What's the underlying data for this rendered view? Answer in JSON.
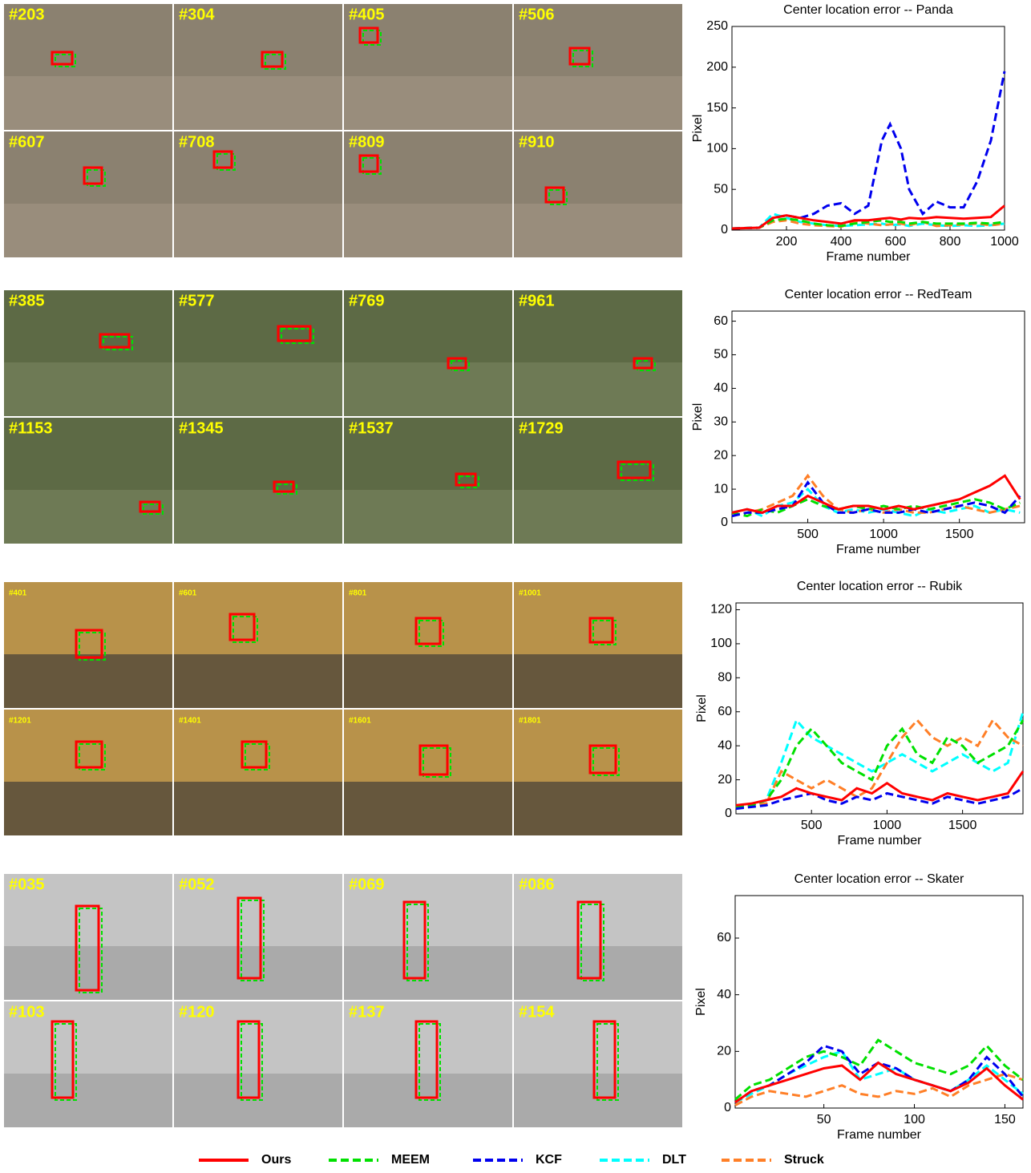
{
  "image_grid": [
    {
      "frames": [
        "#203",
        "#304",
        "#405",
        "#506",
        "#607",
        "#708",
        "#809",
        "#910"
      ]
    },
    {
      "frames": [
        "#385",
        "#577",
        "#769",
        "#961",
        "#1153",
        "#1345",
        "#1537",
        "#1729"
      ]
    },
    {
      "frames": [
        "#401",
        "#601",
        "#801",
        "#1001",
        "#1201",
        "#1401",
        "#1601",
        "#1801"
      ]
    },
    {
      "frames": [
        "#035",
        "#052",
        "#069",
        "#086",
        "#103",
        "#120",
        "#137",
        "#154"
      ]
    }
  ],
  "legend": {
    "entries": [
      {
        "name": "Ours",
        "color": "#ff0000",
        "dashed": false
      },
      {
        "name": "MEEM",
        "color": "#00e000",
        "dashed": true
      },
      {
        "name": "KCF",
        "color": "#0000ee",
        "dashed": true
      },
      {
        "name": "DLT",
        "color": "#00ffff",
        "dashed": true
      },
      {
        "name": "Struck",
        "color": "#ff7f27",
        "dashed": true
      }
    ]
  },
  "chart_data": [
    {
      "type": "line",
      "title": "Center location error -- Panda",
      "x_label": "Frame number",
      "y_label": "Pixel",
      "x": [
        0,
        100,
        150,
        200,
        250,
        300,
        350,
        400,
        450,
        500,
        550,
        580,
        620,
        650,
        700,
        750,
        800,
        850,
        900,
        950,
        1000
      ],
      "xlim": [
        0,
        1000
      ],
      "ylim": [
        0,
        250
      ],
      "xticks": [
        200,
        400,
        600,
        800,
        1000
      ],
      "yticks": [
        0,
        50,
        100,
        150,
        200,
        250
      ],
      "series": [
        {
          "color": "#00ffff",
          "values": [
            2,
            3,
            20,
            15,
            10,
            8,
            6,
            5,
            6,
            7,
            8,
            6,
            7,
            5,
            8,
            6,
            5,
            6,
            5,
            6,
            8
          ]
        },
        {
          "color": "#ff7f27",
          "values": [
            2,
            3,
            10,
            12,
            8,
            6,
            5,
            4,
            10,
            8,
            6,
            7,
            8,
            6,
            10,
            5,
            6,
            7,
            8,
            6,
            8
          ]
        },
        {
          "color": "#00e000",
          "values": [
            2,
            3,
            12,
            14,
            12,
            8,
            6,
            5,
            8,
            10,
            12,
            10,
            10,
            8,
            10,
            8,
            8,
            8,
            9,
            8,
            10
          ]
        },
        {
          "color": "#0000ee",
          "values": [
            2,
            3,
            15,
            18,
            15,
            20,
            30,
            33,
            20,
            30,
            110,
            130,
            100,
            50,
            20,
            35,
            28,
            28,
            60,
            110,
            195
          ]
        },
        {
          "color": "#ff0000",
          "values": [
            2,
            3,
            15,
            18,
            15,
            12,
            10,
            8,
            12,
            12,
            14,
            15,
            13,
            15,
            14,
            16,
            15,
            14,
            15,
            16,
            30
          ]
        }
      ]
    },
    {
      "type": "line",
      "title": "Center location error -- RedTeam",
      "x_label": "Frame number",
      "y_label": "Pixel",
      "x": [
        0,
        100,
        200,
        300,
        400,
        500,
        600,
        700,
        800,
        900,
        1000,
        1100,
        1200,
        1300,
        1400,
        1500,
        1600,
        1700,
        1800,
        1900
      ],
      "xlim": [
        0,
        1930
      ],
      "ylim": [
        0,
        63
      ],
      "xticks": [
        500,
        1000,
        1500
      ],
      "yticks": [
        0,
        10,
        20,
        30,
        40,
        50,
        60
      ],
      "series": [
        {
          "color": "#00ffff",
          "values": [
            3,
            4,
            2,
            5,
            6,
            10,
            5,
            3,
            4,
            3,
            4,
            3,
            2,
            4,
            3,
            4,
            5,
            3,
            4,
            3
          ]
        },
        {
          "color": "#ff7f27",
          "values": [
            2,
            3,
            4,
            6,
            8,
            14,
            8,
            4,
            3,
            4,
            3,
            4,
            3,
            3,
            4,
            5,
            4,
            3,
            4,
            5
          ]
        },
        {
          "color": "#00e000",
          "values": [
            3,
            2,
            4,
            3,
            5,
            7,
            5,
            4,
            5,
            4,
            5,
            4,
            5,
            4,
            5,
            6,
            7,
            6,
            4,
            6
          ]
        },
        {
          "color": "#0000ee",
          "values": [
            2,
            3,
            3,
            4,
            5,
            12,
            6,
            3,
            3,
            4,
            3,
            3,
            4,
            3,
            4,
            5,
            6,
            5,
            3,
            8
          ]
        },
        {
          "color": "#ff0000",
          "values": [
            3,
            4,
            3,
            5,
            5,
            8,
            6,
            4,
            5,
            5,
            4,
            5,
            4,
            5,
            6,
            7,
            9,
            11,
            14,
            7
          ]
        }
      ]
    },
    {
      "type": "line",
      "title": "Center location error -- Rubik",
      "x_label": "Frame number",
      "y_label": "Pixel",
      "x": [
        0,
        100,
        200,
        300,
        400,
        500,
        600,
        700,
        800,
        900,
        1000,
        1100,
        1200,
        1300,
        1400,
        1500,
        1600,
        1700,
        1800,
        1900
      ],
      "xlim": [
        0,
        1900
      ],
      "ylim": [
        0,
        124
      ],
      "xticks": [
        500,
        1000,
        1500
      ],
      "yticks": [
        0,
        20,
        40,
        60,
        80,
        100,
        120
      ],
      "series": [
        {
          "color": "#00ffff",
          "values": [
            5,
            4,
            8,
            30,
            55,
            45,
            40,
            35,
            30,
            25,
            30,
            35,
            30,
            25,
            30,
            35,
            30,
            25,
            30,
            60
          ]
        },
        {
          "color": "#ff7f27",
          "values": [
            3,
            5,
            6,
            25,
            20,
            15,
            20,
            15,
            10,
            15,
            30,
            45,
            55,
            45,
            40,
            45,
            40,
            55,
            45,
            40
          ]
        },
        {
          "color": "#00e000",
          "values": [
            4,
            5,
            8,
            20,
            40,
            50,
            40,
            30,
            25,
            20,
            40,
            50,
            35,
            30,
            45,
            40,
            30,
            35,
            40,
            55
          ]
        },
        {
          "color": "#0000ee",
          "values": [
            3,
            4,
            5,
            8,
            10,
            12,
            8,
            6,
            10,
            8,
            12,
            10,
            8,
            6,
            10,
            8,
            6,
            8,
            10,
            15
          ]
        },
        {
          "color": "#ff0000",
          "values": [
            5,
            6,
            8,
            10,
            15,
            12,
            10,
            8,
            15,
            12,
            18,
            12,
            10,
            8,
            12,
            10,
            8,
            10,
            12,
            25
          ]
        }
      ]
    },
    {
      "type": "line",
      "title": "Center location error -- Skater",
      "x_label": "Frame number",
      "y_label": "Pixel",
      "x": [
        1,
        10,
        20,
        30,
        40,
        50,
        60,
        70,
        80,
        90,
        100,
        110,
        120,
        130,
        140,
        150,
        160
      ],
      "xlim": [
        1,
        160
      ],
      "ylim": [
        0,
        75
      ],
      "xticks": [
        50,
        100,
        150
      ],
      "yticks": [
        0,
        20,
        40,
        60
      ],
      "series": [
        {
          "color": "#00ffff",
          "values": [
            2,
            5,
            8,
            12,
            15,
            18,
            20,
            10,
            12,
            14,
            10,
            8,
            6,
            10,
            15,
            10,
            5
          ]
        },
        {
          "color": "#ff7f27",
          "values": [
            1,
            4,
            6,
            5,
            4,
            6,
            8,
            5,
            4,
            6,
            5,
            7,
            4,
            8,
            10,
            12,
            10
          ]
        },
        {
          "color": "#00e000",
          "values": [
            3,
            8,
            10,
            14,
            18,
            20,
            18,
            15,
            24,
            20,
            16,
            14,
            12,
            15,
            22,
            15,
            10
          ]
        },
        {
          "color": "#0000ee",
          "values": [
            2,
            6,
            8,
            12,
            16,
            22,
            20,
            12,
            16,
            14,
            10,
            8,
            6,
            10,
            18,
            12,
            4
          ]
        },
        {
          "color": "#ff0000",
          "values": [
            2,
            6,
            8,
            10,
            12,
            14,
            15,
            10,
            16,
            12,
            10,
            8,
            6,
            9,
            14,
            8,
            3
          ]
        }
      ]
    }
  ]
}
